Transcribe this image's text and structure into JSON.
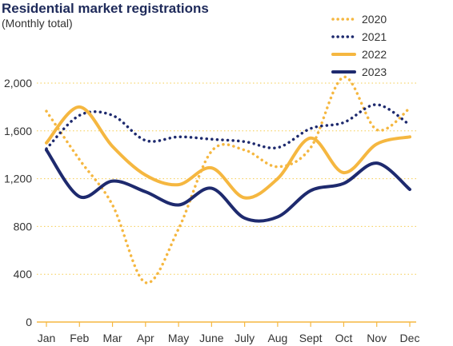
{
  "chart_data": {
    "type": "line",
    "title": "Residential market registrations",
    "subtitle": "(Monthly total)",
    "xlabel": "",
    "ylabel": "",
    "categories": [
      "Jan",
      "Feb",
      "Mar",
      "Apr",
      "May",
      "June",
      "July",
      "Aug",
      "Sept",
      "Oct",
      "Nov",
      "Dec"
    ],
    "yticks": [
      "0",
      "400",
      "800",
      "1,200",
      "1,600",
      "2,000"
    ],
    "ylim": [
      0,
      2000
    ],
    "grid": true,
    "legend_position": "top-right",
    "series": [
      {
        "name": "2020",
        "style": "dotted",
        "color": "#f5b740",
        "values": [
          1765,
          1360,
          980,
          330,
          780,
          1430,
          1440,
          1300,
          1460,
          2050,
          1610,
          1790
        ]
      },
      {
        "name": "2021",
        "style": "dotted",
        "color": "#1e2a6e",
        "values": [
          1450,
          1730,
          1730,
          1520,
          1550,
          1530,
          1510,
          1460,
          1620,
          1670,
          1820,
          1650
        ]
      },
      {
        "name": "2022",
        "style": "solid",
        "color": "#f5b740",
        "values": [
          1500,
          1800,
          1470,
          1230,
          1150,
          1290,
          1040,
          1200,
          1540,
          1250,
          1490,
          1550
        ]
      },
      {
        "name": "2023",
        "style": "solid",
        "color": "#1e2a6e",
        "values": [
          1440,
          1050,
          1180,
          1090,
          980,
          1120,
          870,
          880,
          1100,
          1160,
          1330,
          1110
        ]
      }
    ]
  }
}
